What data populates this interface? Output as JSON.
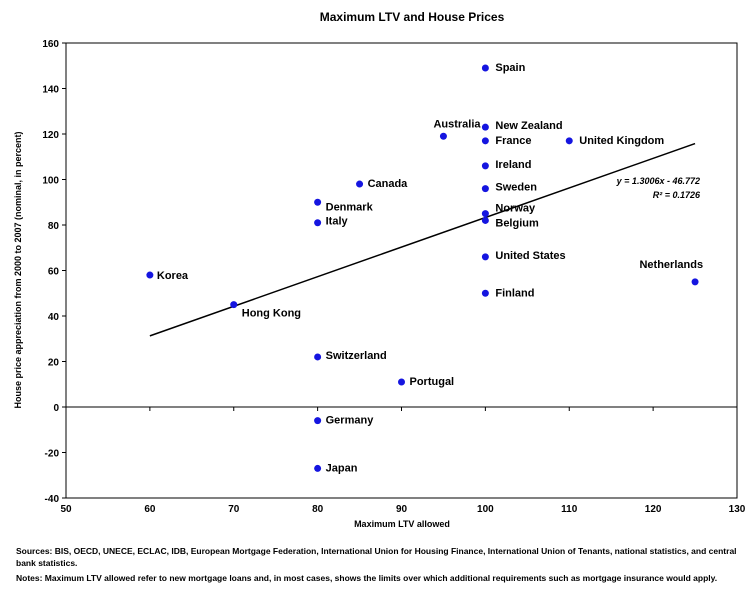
{
  "chart_data": {
    "type": "scatter",
    "title": "Maximum LTV and House Prices",
    "xlabel": "Maximum LTV allowed",
    "ylabel": "House price appreciation from 2000 to 2007 (nominal, in percent)",
    "xlim": [
      50,
      130
    ],
    "ylim": [
      -40,
      160
    ],
    "xticks": [
      "50",
      "60",
      "70",
      "80",
      "90",
      "100",
      "110",
      "120",
      "130"
    ],
    "yticks": [
      "160",
      "140",
      "120",
      "100",
      "80",
      "60",
      "40",
      "20",
      "0",
      "-20",
      "-40"
    ],
    "grid": false,
    "points": [
      {
        "label": "Korea",
        "x": 60,
        "y": 58
      },
      {
        "label": "Hong Kong",
        "x": 70,
        "y": 45
      },
      {
        "label": "Denmark",
        "x": 80,
        "y": 90
      },
      {
        "label": "Italy",
        "x": 80,
        "y": 81
      },
      {
        "label": "Switzerland",
        "x": 80,
        "y": 22
      },
      {
        "label": "Germany",
        "x": 80,
        "y": -6
      },
      {
        "label": "Japan",
        "x": 80,
        "y": -27
      },
      {
        "label": "Canada",
        "x": 85,
        "y": 98
      },
      {
        "label": "Portugal",
        "x": 90,
        "y": 11
      },
      {
        "label": "Australia",
        "x": 95,
        "y": 119
      },
      {
        "label": "Spain",
        "x": 100,
        "y": 149
      },
      {
        "label": "New Zealand",
        "x": 100,
        "y": 123
      },
      {
        "label": "France",
        "x": 100,
        "y": 117
      },
      {
        "label": "Ireland",
        "x": 100,
        "y": 106
      },
      {
        "label": "Sweden",
        "x": 100,
        "y": 96
      },
      {
        "label": "Norway",
        "x": 100,
        "y": 85
      },
      {
        "label": "Belgium",
        "x": 100,
        "y": 82
      },
      {
        "label": "United States",
        "x": 100,
        "y": 66
      },
      {
        "label": "Finland",
        "x": 100,
        "y": 50
      },
      {
        "label": "United Kingdom",
        "x": 110,
        "y": 117
      },
      {
        "label": "Netherlands",
        "x": 125,
        "y": 55
      }
    ],
    "trendline": {
      "equation": "y = 1.3006x - 46.772",
      "r_squared": "R² = 0.1726",
      "slope": 1.3006,
      "intercept": -46.772,
      "x_range": [
        60,
        125
      ]
    },
    "marker_color": "#1515e0",
    "trendline_color": "#000000"
  },
  "notes": {
    "sources": "Sources: BIS, OECD, UNECE, ECLAC, IDB, European Mortgage Federation, International Union for Housing Finance, International Union of Tenants, national statistics, and central bank statistics.",
    "notes": "Notes: Maximum LTV allowed refer to new mortgage loans and, in most cases, shows the limits over which additional requirements such as mortgage insurance would apply."
  }
}
